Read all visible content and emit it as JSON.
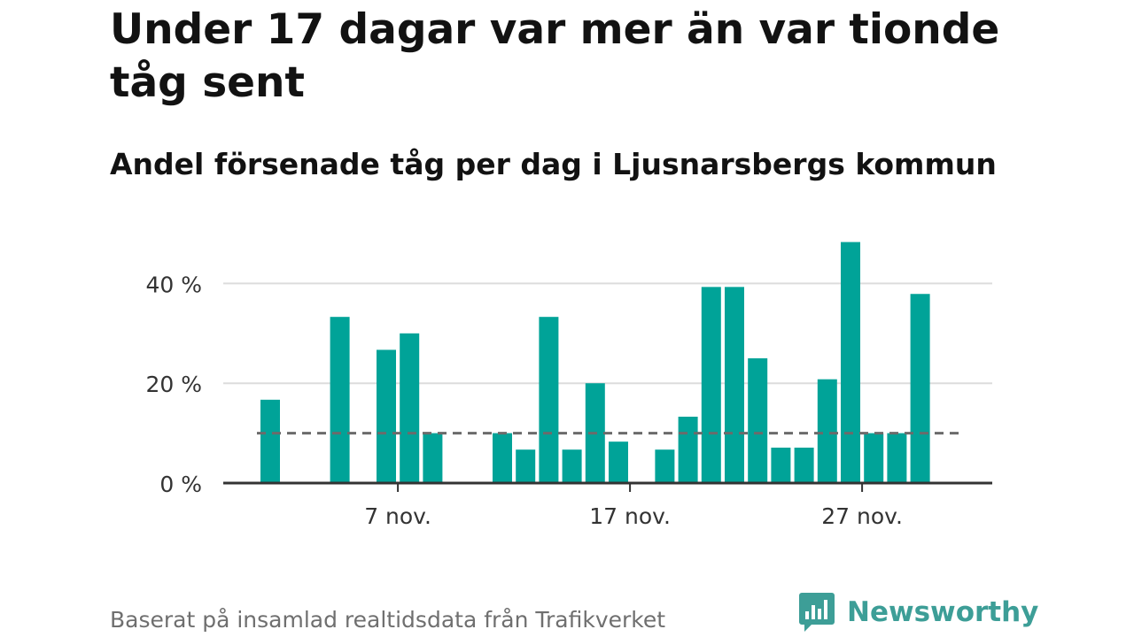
{
  "title": "Under 17 dagar var mer än var tionde tåg sent",
  "subtitle": "Andel försenade tåg per dag i Ljusnarsbergs kommun",
  "source": "Baserat på insamlad realtidsdata från Trafikverket",
  "brand": "Newsworthy",
  "colors": {
    "bar": "#00a398",
    "reference_line": "#6b6b6b",
    "grid": "#dcdcdc",
    "axis": "#333333",
    "brand": "#3d9e97"
  },
  "chart_data": {
    "type": "bar",
    "x_unit": "day of November",
    "x": [
      1,
      2,
      3,
      4,
      5,
      6,
      7,
      8,
      9,
      10,
      11,
      12,
      13,
      14,
      15,
      16,
      17,
      18,
      19,
      20,
      21,
      22,
      23,
      24,
      25,
      26,
      27,
      28,
      29,
      30
    ],
    "values": [
      16.7,
      0,
      0,
      33.3,
      0,
      26.7,
      30,
      10,
      0,
      0,
      10,
      6.7,
      33.3,
      6.7,
      20,
      8.3,
      0,
      6.7,
      13.3,
      39.3,
      39.3,
      25,
      7.1,
      7.1,
      20.8,
      48.3,
      10,
      10,
      37.9,
      null
    ],
    "ylim": [
      0,
      50
    ],
    "yticks": [
      0,
      20,
      40
    ],
    "ytick_labels": [
      "0 %",
      "20 %",
      "40 %"
    ],
    "xticks": [
      7,
      17,
      27
    ],
    "xtick_labels": [
      "7 nov.",
      "17 nov.",
      "27 nov."
    ],
    "reference_line": 10,
    "grid": true
  }
}
